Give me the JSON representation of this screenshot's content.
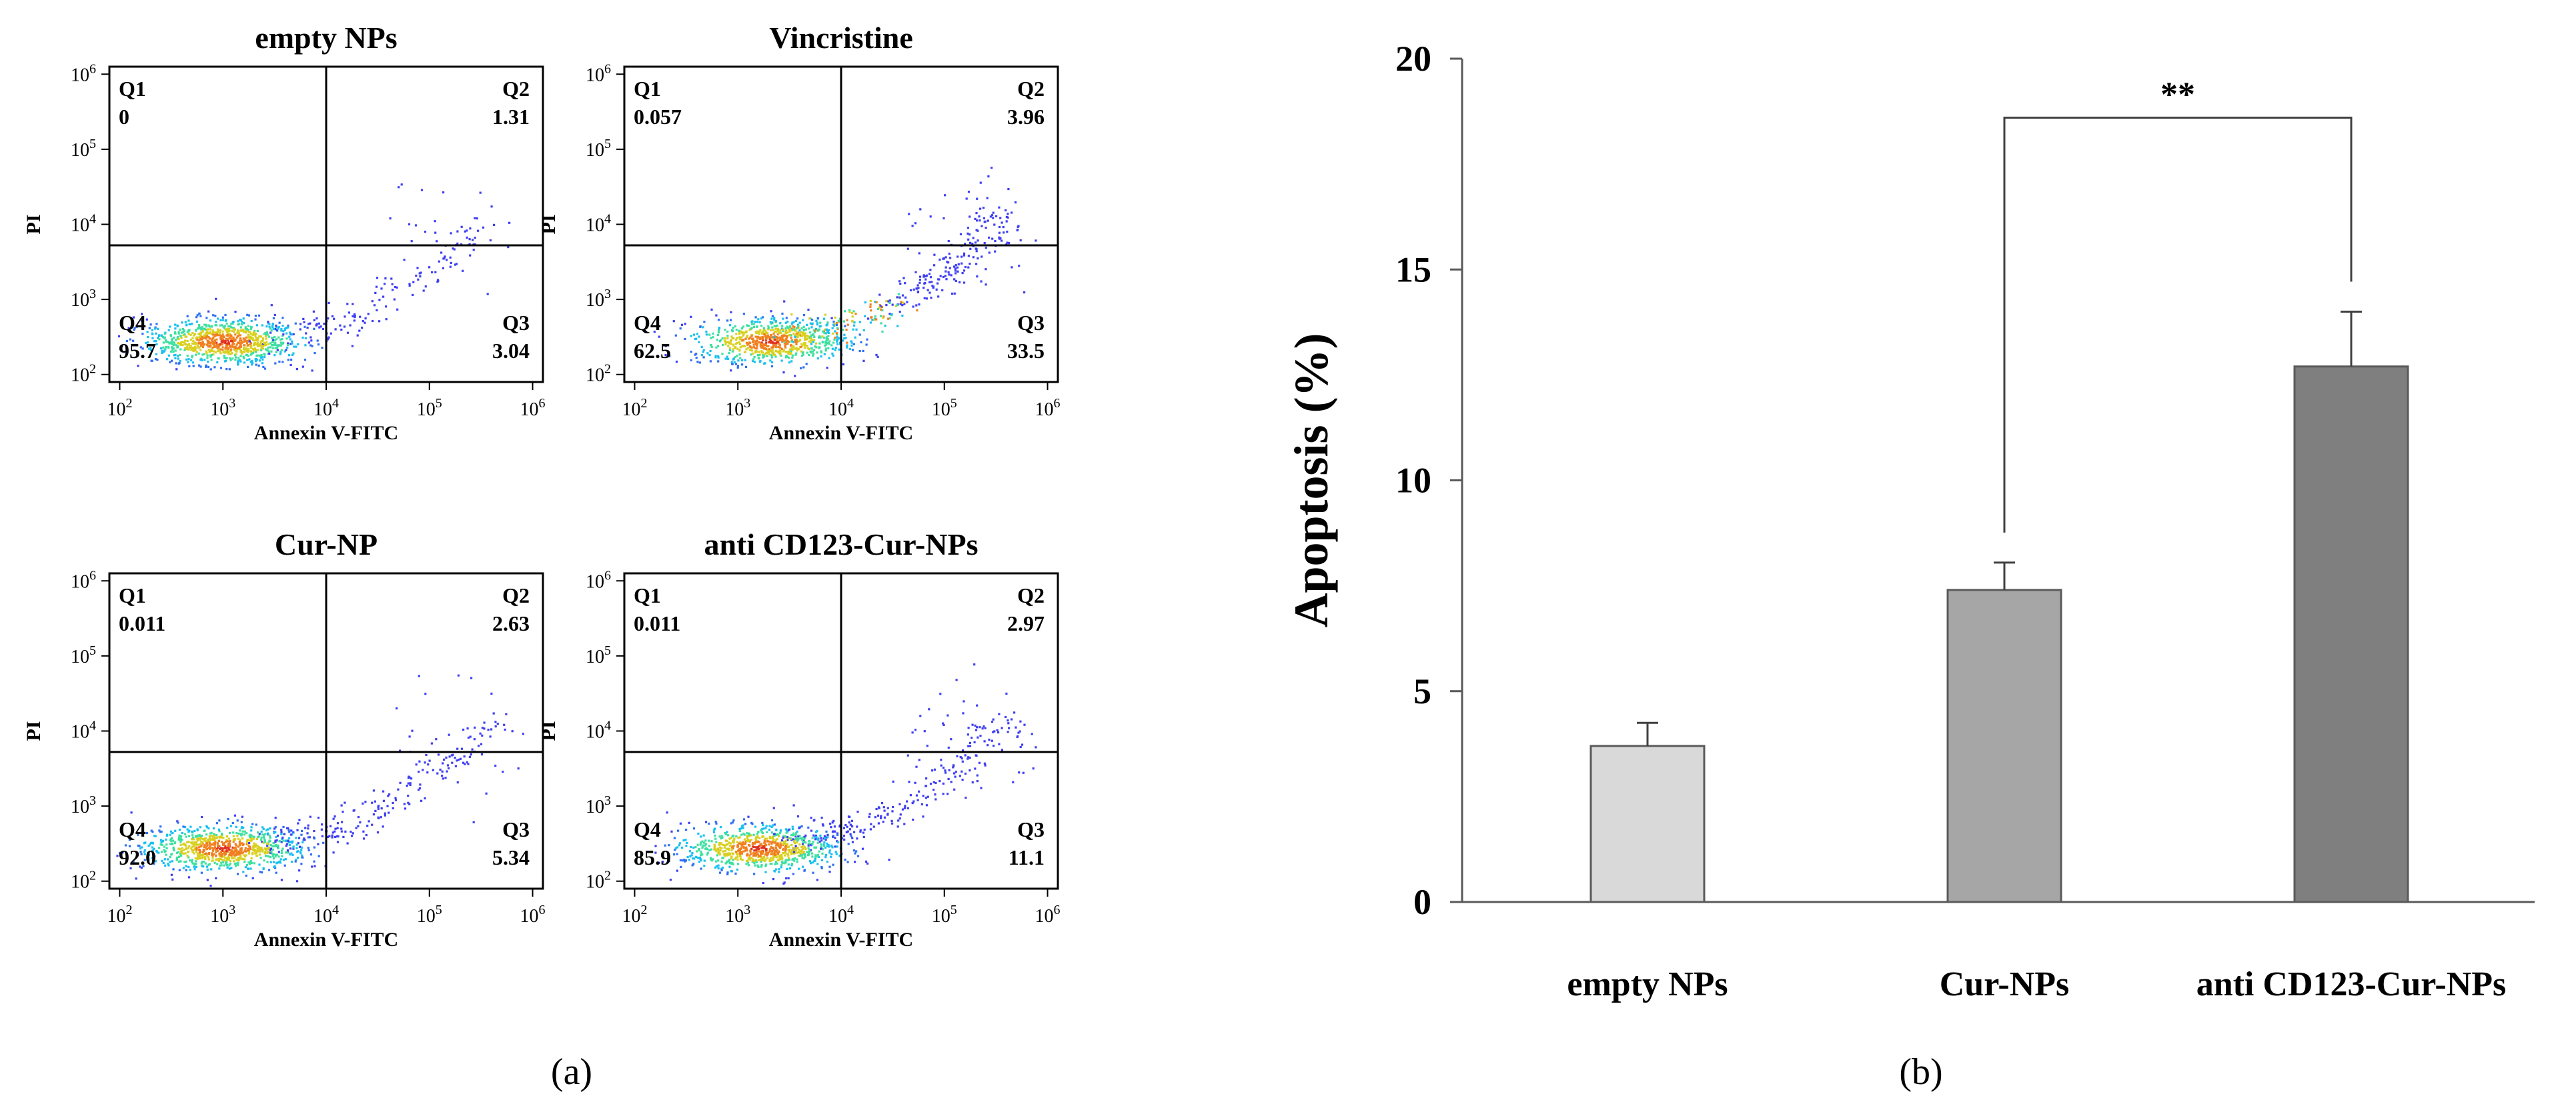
{
  "panel_a": {
    "caption": "(a)",
    "xlabel": "Annexin V-FITC",
    "ylabel": "PI",
    "axis_exponents": [
      "2",
      "3",
      "4",
      "5",
      "6"
    ],
    "axis_base": "10",
    "plots": [
      {
        "title": "empty NPs",
        "quadrants": {
          "Q1": {
            "label": "Q1",
            "value": "0"
          },
          "Q2": {
            "label": "Q2",
            "value": "1.31"
          },
          "Q3": {
            "label": "Q3",
            "value": "3.04"
          },
          "Q4": {
            "label": "Q4",
            "value": "95.7"
          }
        }
      },
      {
        "title": "Vincristine",
        "quadrants": {
          "Q1": {
            "label": "Q1",
            "value": "0.057"
          },
          "Q2": {
            "label": "Q2",
            "value": "3.96"
          },
          "Q3": {
            "label": "Q3",
            "value": "33.5"
          },
          "Q4": {
            "label": "Q4",
            "value": "62.5"
          }
        }
      },
      {
        "title": "Cur-NP",
        "quadrants": {
          "Q1": {
            "label": "Q1",
            "value": "0.011"
          },
          "Q2": {
            "label": "Q2",
            "value": "2.63"
          },
          "Q3": {
            "label": "Q3",
            "value": "5.34"
          },
          "Q4": {
            "label": "Q4",
            "value": "92.0"
          }
        }
      },
      {
        "title": "anti CD123-Cur-NPs",
        "quadrants": {
          "Q1": {
            "label": "Q1",
            "value": "0.011"
          },
          "Q2": {
            "label": "Q2",
            "value": "2.97"
          },
          "Q3": {
            "label": "Q3",
            "value": "11.1"
          },
          "Q4": {
            "label": "Q4",
            "value": "85.9"
          }
        }
      }
    ]
  },
  "chart_data": {
    "type": "bar",
    "caption": "(b)",
    "title": "",
    "categories": [
      "empty NPs",
      "Cur-NPs",
      "anti CD123-Cur-NPs"
    ],
    "values": [
      3.7,
      7.4,
      12.7
    ],
    "errors": [
      0.55,
      0.65,
      1.3
    ],
    "bar_colors": [
      "#d9d9d9",
      "#a6a6a6",
      "#7f7f7f"
    ],
    "xlabel": "",
    "ylabel": "Apoptosis (%)",
    "ylim": [
      0,
      20
    ],
    "yticks": [
      "0",
      "5",
      "10",
      "15",
      "20"
    ],
    "significance": {
      "label": "**",
      "from_category": "Cur-NPs",
      "to_category": "anti CD123-Cur-NPs",
      "level": 18.6
    }
  }
}
